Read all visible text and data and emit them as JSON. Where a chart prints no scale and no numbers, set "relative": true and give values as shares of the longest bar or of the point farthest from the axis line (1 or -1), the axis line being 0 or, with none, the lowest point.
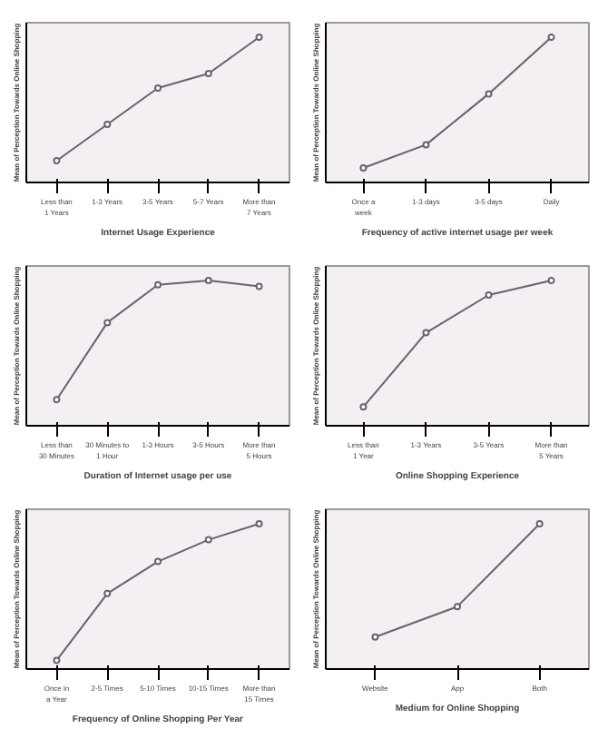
{
  "chart_data": [
    {
      "type": "line",
      "relative": true,
      "marker": "circle",
      "color": "#6e5f6e",
      "xlabel": "Internet Usage Experience",
      "ylabel": "Mean of Perception Towards Online Shopping",
      "categories": [
        "Less than 1 Years",
        "1-3 Years",
        "3-5 Years",
        "5-7 Years",
        "More than 7 Years"
      ],
      "values": [
        0.15,
        0.4,
        0.65,
        0.75,
        1.0
      ]
    },
    {
      "type": "line",
      "relative": true,
      "marker": "circle",
      "color": "#6e5f6e",
      "xlabel": "Frequency of active internet usage per week",
      "ylabel": "Mean of Perception Towards Online Shopping",
      "categories": [
        "Once a week",
        "1-3 days",
        "3-5 days",
        "Daily"
      ],
      "values": [
        0.1,
        0.26,
        0.61,
        1.0
      ]
    },
    {
      "type": "line",
      "relative": true,
      "marker": "circle",
      "color": "#6e5f6e",
      "xlabel": "Duration of Internet usage per use",
      "ylabel": "Mean of Perception Towards Online Shopping",
      "categories": [
        "Less than 30 Minutes",
        "30 Minutes to 1 Hour",
        "1-3 Hours",
        "3-5 Hours",
        "More than 5 Hours"
      ],
      "values": [
        0.18,
        0.71,
        0.97,
        1.0,
        0.96
      ]
    },
    {
      "type": "line",
      "relative": true,
      "marker": "circle",
      "color": "#6e5f6e",
      "xlabel": "Online Shopping Experience",
      "ylabel": "Mean of Perception Towards Online Shopping",
      "categories": [
        "Less than 1 Year",
        "1-3 Years",
        "3-5 Years",
        "More than 5 Years"
      ],
      "values": [
        0.13,
        0.64,
        0.9,
        1.0
      ]
    },
    {
      "type": "line",
      "relative": true,
      "marker": "circle",
      "color": "#6e5f6e",
      "xlabel": "Frequency of Online Shopping Per Year",
      "ylabel": "Mean of Perception Towards Online Shopping",
      "categories": [
        "Once in a Year",
        "2-5 Times",
        "5-10 Times",
        "10-15 Times",
        "More than 15 Times"
      ],
      "values": [
        0.06,
        0.52,
        0.74,
        0.89,
        1.0
      ]
    },
    {
      "type": "line",
      "relative": true,
      "marker": "circle",
      "color": "#6e5f6e",
      "xlabel": "Medium for Online Shopping",
      "ylabel": "Mean of Perception Towards Online Shopping",
      "categories": [
        "Website",
        "App",
        "Both"
      ],
      "values": [
        0.22,
        0.43,
        1.0
      ]
    }
  ]
}
